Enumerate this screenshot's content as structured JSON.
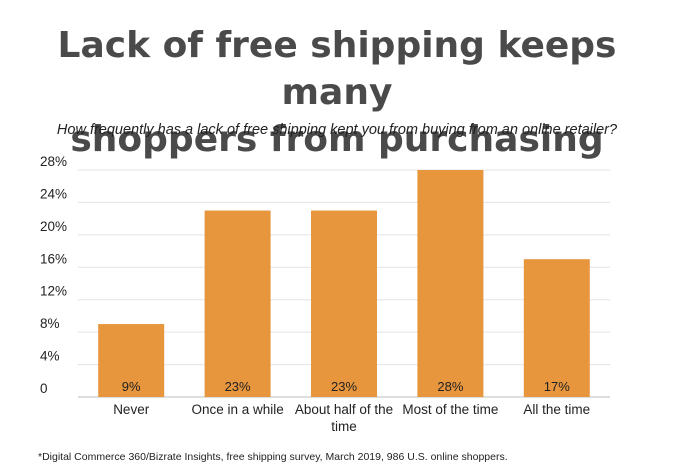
{
  "title_lines": [
    "Lack of free shipping keeps many",
    "shoppers from purchasing"
  ],
  "subtitle": "How frequently has a lack of free shipping kept you from buying from an online retailer?",
  "footnote": "*Digital Commerce 360/Bizrate Insights, free shipping survey, March 2019, 986 U.S. online shoppers.",
  "chart_data": {
    "type": "bar",
    "categories": [
      "Never",
      "Once in a while",
      "About half of the time",
      "Most of the time",
      "All the time"
    ],
    "category_lines": [
      [
        "Never"
      ],
      [
        "Once in a while"
      ],
      [
        "About half of the",
        "time"
      ],
      [
        "Most of the time"
      ],
      [
        "All the time"
      ]
    ],
    "values": [
      9,
      23,
      23,
      28,
      17
    ],
    "data_labels": [
      "9%",
      "23%",
      "23%",
      "28%",
      "17%"
    ],
    "yticks": [
      0,
      4,
      8,
      12,
      16,
      20,
      24,
      28
    ],
    "ytick_labels": [
      "0",
      "4%",
      "8%",
      "12%",
      "16%",
      "20%",
      "24%",
      "28%"
    ],
    "ylim": [
      0,
      28
    ],
    "grid": true,
    "legend": "none",
    "bar_color": "#e8963e"
  }
}
